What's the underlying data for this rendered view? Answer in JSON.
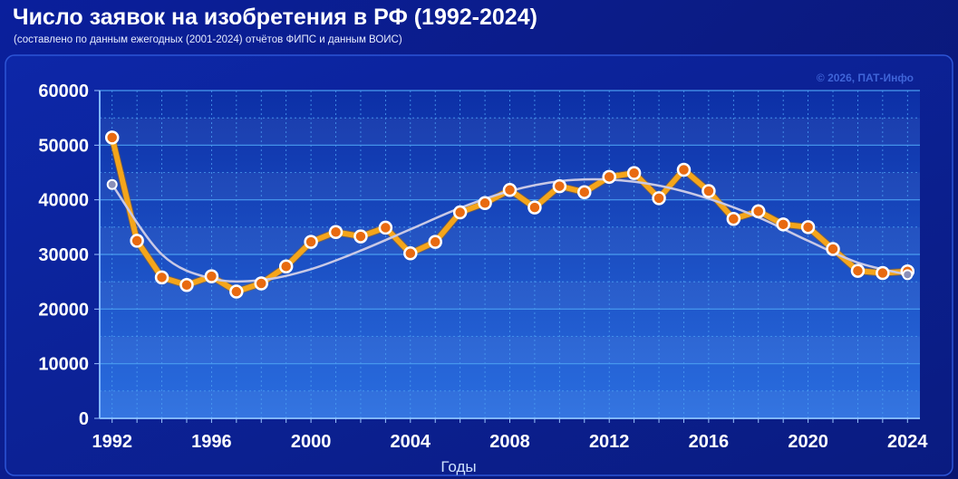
{
  "header": {
    "title": "Число заявок на изобретения в РФ (1992-2024)",
    "subtitle": "(составлено по данным ежегодных (2001-2024) отчётов ФИПС и данным ВОИС)"
  },
  "watermark": "© 2026, ПАТ-Инфо",
  "colors": {
    "series_line": "#f5a51a",
    "marker_fill": "#e86a10",
    "marker_stroke": "#ffffff",
    "trend_line": "#c9c9e6",
    "plot_background": "#1a4fc4",
    "grid": "#4a9cf0"
  },
  "chart_data": {
    "type": "line",
    "title": "Число заявок на изобретения в РФ (1992-2024)",
    "subtitle": "(составлено по данным ежегодных (2001-2024) отчётов ФИПС и данным ВОИС)",
    "xlabel": "Годы",
    "ylabel": "",
    "xlim": [
      1991.5,
      2024.5
    ],
    "ylim": [
      0,
      60000
    ],
    "xticks": [
      1992,
      1996,
      2000,
      2004,
      2008,
      2012,
      2016,
      2020,
      2024
    ],
    "yticks": [
      0,
      10000,
      20000,
      30000,
      40000,
      50000,
      60000
    ],
    "grid": true,
    "legend": "none",
    "x": [
      1992,
      1993,
      1994,
      1995,
      1996,
      1997,
      1998,
      1999,
      2000,
      2001,
      2002,
      2003,
      2004,
      2005,
      2006,
      2007,
      2008,
      2009,
      2010,
      2011,
      2012,
      2013,
      2014,
      2015,
      2016,
      2017,
      2018,
      2019,
      2020,
      2021,
      2022,
      2023,
      2024
    ],
    "series": [
      {
        "values": [
          51400,
          32500,
          25800,
          24400,
          26000,
          23200,
          24700,
          27800,
          32300,
          34100,
          33300,
          34900,
          30200,
          32300,
          37700,
          39400,
          41800,
          38600,
          42500,
          41400,
          44200,
          44900,
          40300,
          45500,
          41600,
          36500,
          37900,
          35500,
          35000,
          31000,
          27000,
          26600,
          26900
        ]
      },
      {
        "type": "trend",
        "x": [
          1992,
          1994,
          1996,
          1998,
          2000,
          2002,
          2004,
          2006,
          2008,
          2010,
          2012,
          2014,
          2016,
          2018,
          2020,
          2022,
          2024
        ],
        "values": [
          42800,
          30000,
          25600,
          25300,
          27300,
          30700,
          34600,
          38500,
          41600,
          43400,
          43700,
          42600,
          40200,
          36800,
          32500,
          28500,
          26300
        ]
      }
    ]
  }
}
